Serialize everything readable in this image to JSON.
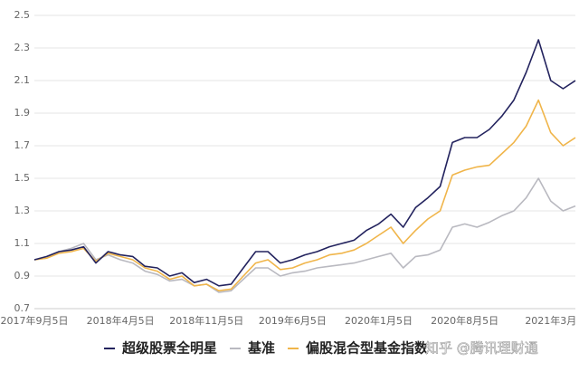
{
  "chart_data": {
    "type": "line",
    "categories": [
      "2017年9月5日",
      null,
      null,
      null,
      null,
      null,
      null,
      "2018年4月5日",
      null,
      null,
      null,
      null,
      null,
      null,
      "2018年11月5日",
      null,
      null,
      null,
      null,
      null,
      null,
      "2019年6月5日",
      null,
      null,
      null,
      null,
      null,
      null,
      "2020年1月5日",
      null,
      null,
      null,
      null,
      null,
      null,
      "2020年8月5日",
      null,
      null,
      null,
      null,
      null,
      null,
      "2021年3月",
      null,
      null
    ],
    "series": [
      {
        "name": "超级股票全明星",
        "color": "#23235e",
        "values": [
          1.0,
          1.02,
          1.05,
          1.06,
          1.08,
          0.98,
          1.05,
          1.03,
          1.02,
          0.96,
          0.95,
          0.9,
          0.92,
          0.86,
          0.88,
          0.84,
          0.85,
          0.95,
          1.05,
          1.05,
          0.98,
          1.0,
          1.03,
          1.05,
          1.08,
          1.1,
          1.12,
          1.18,
          1.22,
          1.28,
          1.2,
          1.32,
          1.38,
          1.45,
          1.72,
          1.75,
          1.75,
          1.8,
          1.88,
          1.98,
          2.15,
          2.35,
          2.1,
          2.05,
          2.1
        ]
      },
      {
        "name": "基准",
        "color": "#b9b9c0",
        "values": [
          1.0,
          1.01,
          1.05,
          1.07,
          1.1,
          1.0,
          1.03,
          1.0,
          0.98,
          0.93,
          0.91,
          0.87,
          0.88,
          0.84,
          0.85,
          0.8,
          0.81,
          0.88,
          0.95,
          0.95,
          0.9,
          0.92,
          0.93,
          0.95,
          0.96,
          0.97,
          0.98,
          1.0,
          1.02,
          1.04,
          0.95,
          1.02,
          1.03,
          1.06,
          1.2,
          1.22,
          1.2,
          1.23,
          1.27,
          1.3,
          1.38,
          1.5,
          1.36,
          1.3,
          1.33
        ]
      },
      {
        "name": "偏股混合型基金指数",
        "color": "#f0b54a",
        "values": [
          1.0,
          1.01,
          1.04,
          1.05,
          1.07,
          0.99,
          1.04,
          1.02,
          1.0,
          0.95,
          0.93,
          0.88,
          0.9,
          0.84,
          0.85,
          0.81,
          0.82,
          0.9,
          0.98,
          1.0,
          0.94,
          0.95,
          0.98,
          1.0,
          1.03,
          1.04,
          1.06,
          1.1,
          1.15,
          1.2,
          1.1,
          1.18,
          1.25,
          1.3,
          1.52,
          1.55,
          1.57,
          1.58,
          1.65,
          1.72,
          1.82,
          1.98,
          1.78,
          1.7,
          1.75
        ]
      }
    ],
    "ylim": [
      0.7,
      2.5
    ],
    "yticks": [
      0.7,
      0.9,
      1.1,
      1.3,
      1.5,
      1.7,
      1.9,
      2.1,
      2.3,
      2.5
    ],
    "grid": true,
    "legend": "bottom",
    "watermark": "知乎 @腾讯理财通"
  }
}
